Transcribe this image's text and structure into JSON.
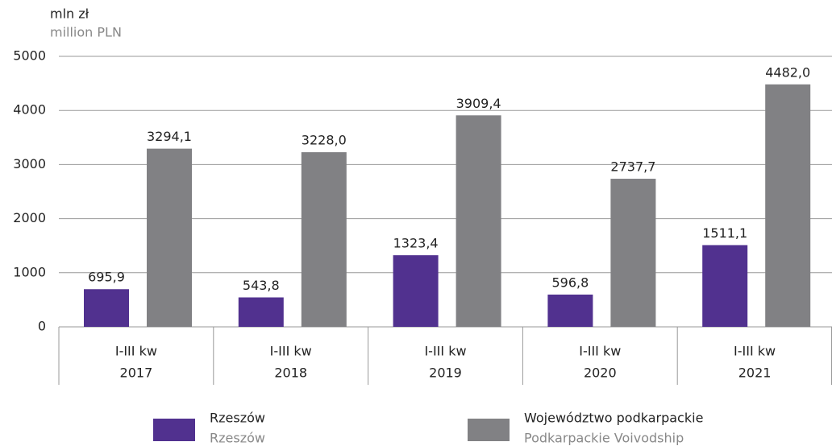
{
  "chart_data": {
    "type": "bar",
    "y_label": "mln zł",
    "y_label_en": "million PLN",
    "categories": [
      [
        "I-III kw",
        "2017"
      ],
      [
        "I-III kw",
        "2018"
      ],
      [
        "I-III kw",
        "2019"
      ],
      [
        "I-III kw",
        "2020"
      ],
      [
        "I-III kw",
        "2021"
      ]
    ],
    "series": [
      {
        "name": "Rzeszów",
        "name_en": "Rzeszów",
        "color": "#51318f",
        "values": [
          695.9,
          543.8,
          1323.4,
          596.8,
          1511.1
        ],
        "value_labels": [
          "695,9",
          "543,8",
          "1323,4",
          "596,8",
          "1511,1"
        ]
      },
      {
        "name": "Województwo podkarpackie",
        "name_en": "Podkarpackie Voivodship",
        "color": "#818184",
        "values": [
          3294.1,
          3228.0,
          3909.4,
          2737.7,
          4482.0
        ],
        "value_labels": [
          "3294,1",
          "3228,0",
          "3909,4",
          "2737,7",
          "4482,0"
        ]
      }
    ],
    "ylim": [
      0,
      5000
    ],
    "yticks": [
      0,
      1000,
      2000,
      3000,
      4000,
      5000
    ],
    "grid": true
  }
}
